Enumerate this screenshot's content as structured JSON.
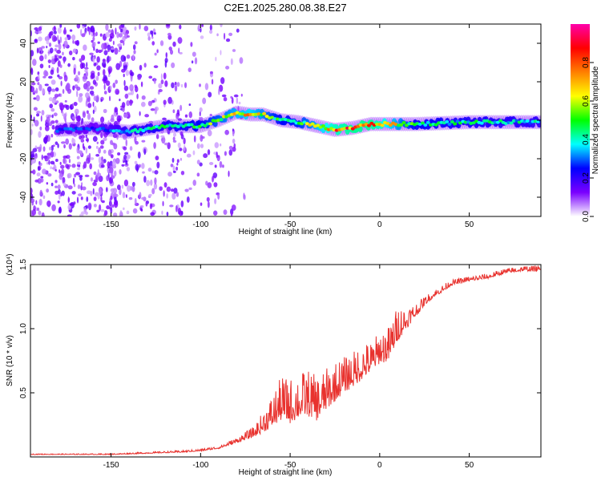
{
  "title": "C2E1.2025.280.08.38.E27",
  "colors": {
    "snr_line": "#e8322e",
    "axis": "#000000"
  },
  "chart_data": [
    {
      "type": "heatmap",
      "title": "C2E1.2025.280.08.38.E27",
      "xlabel": "Height of straight line (km)",
      "ylabel": "Frequency (Hz)",
      "xlim": [
        -195,
        90
      ],
      "ylim": [
        -50,
        50
      ],
      "xticks": [
        -150,
        -100,
        -50,
        0,
        50
      ],
      "yticks": [
        -40,
        -20,
        0,
        20,
        40
      ],
      "colorbar": {
        "label": "Normalized spectral amplitude",
        "range": [
          0,
          1
        ],
        "ticks": [
          "0.0",
          "0.2",
          "0.4",
          "0.6",
          "0.8"
        ],
        "tick_values": [
          0.0,
          0.2,
          0.4,
          0.6,
          0.8
        ],
        "colormap": [
          "#ffffff",
          "#7a00ff",
          "#0000ff",
          "#00ffff",
          "#00ff00",
          "#ffff00",
          "#ff7f00",
          "#ff0000",
          "#ff00aa"
        ]
      },
      "ridge": {
        "x": [
          -180,
          -160,
          -140,
          -120,
          -100,
          -90,
          -80,
          -72,
          -65,
          -55,
          -45,
          -35,
          -25,
          -15,
          -5,
          0,
          20,
          50,
          90
        ],
        "freq": [
          -5,
          -4,
          -6,
          -3,
          -3,
          0,
          4,
          3,
          3,
          0,
          -1,
          -3,
          -5,
          -4,
          -2,
          -2,
          -2,
          -1,
          -1
        ],
        "amplitude": [
          0.35,
          0.3,
          0.45,
          0.5,
          0.55,
          0.65,
          0.75,
          0.8,
          0.7,
          0.55,
          0.6,
          0.75,
          0.9,
          0.95,
          0.95,
          0.9,
          0.55,
          0.5,
          0.45
        ]
      }
    },
    {
      "type": "line",
      "xlabel": "Height of straight line (km)",
      "ylabel": "SNR (10 * v/v)",
      "multiplier": "(x10⁴)",
      "xlim": [
        -195,
        90
      ],
      "ylim": [
        0,
        1.5
      ],
      "xticks": [
        -150,
        -100,
        -50,
        0,
        50
      ],
      "yticks": [
        0.5,
        1.0,
        1.5
      ],
      "ytick_labels": [
        "0.5",
        "1.0",
        "1.5"
      ],
      "series": [
        {
          "name": "SNR",
          "x": [
            -195,
            -170,
            -150,
            -130,
            -110,
            -100,
            -90,
            -80,
            -70,
            -60,
            -55,
            -50,
            -45,
            -40,
            -35,
            -30,
            -25,
            -20,
            -15,
            -10,
            -5,
            0,
            5,
            10,
            15,
            20,
            25,
            30,
            35,
            40,
            50,
            60,
            70,
            80,
            90
          ],
          "values": [
            0.02,
            0.02,
            0.02,
            0.03,
            0.04,
            0.05,
            0.07,
            0.12,
            0.18,
            0.3,
            0.38,
            0.36,
            0.4,
            0.42,
            0.38,
            0.45,
            0.52,
            0.58,
            0.62,
            0.68,
            0.72,
            0.8,
            0.82,
            0.98,
            1.05,
            1.12,
            1.2,
            1.26,
            1.3,
            1.35,
            1.38,
            1.4,
            1.44,
            1.46,
            1.46
          ],
          "noise": [
            0.005,
            0.005,
            0.006,
            0.008,
            0.01,
            0.012,
            0.015,
            0.03,
            0.06,
            0.18,
            0.25,
            0.25,
            0.26,
            0.26,
            0.25,
            0.24,
            0.22,
            0.2,
            0.2,
            0.2,
            0.18,
            0.18,
            0.2,
            0.2,
            0.12,
            0.08,
            0.05,
            0.04,
            0.04,
            0.03,
            0.03,
            0.03,
            0.03,
            0.03,
            0.03
          ]
        }
      ]
    }
  ]
}
